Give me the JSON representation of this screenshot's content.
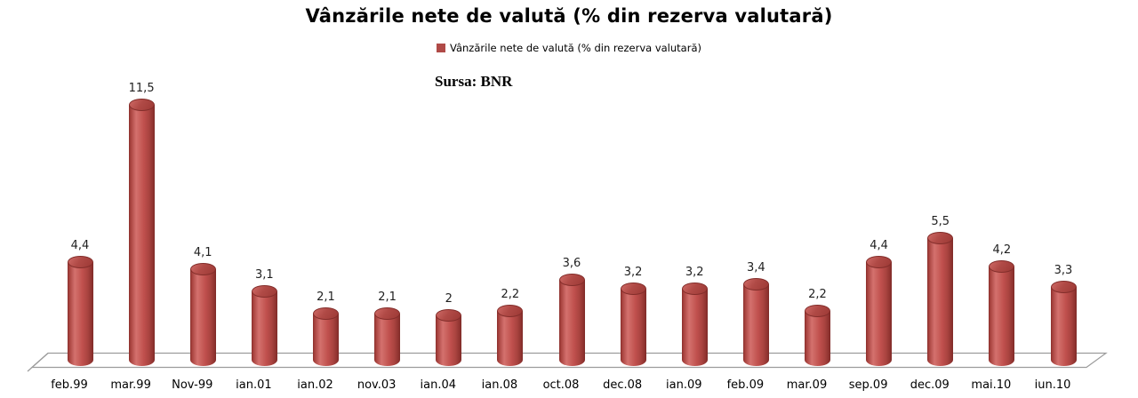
{
  "chart_data": {
    "type": "bar",
    "subtype": "3d-cylinder",
    "title": "Vânzările nete de valută (% din rezerva valutară)",
    "legend": [
      {
        "label": "Vânzările nete de valută (% din rezerva valutară)",
        "color": "#b04a47"
      }
    ],
    "source_note": "Sursa: BNR",
    "categories": [
      "feb.99",
      "mar.99",
      "Nov-99",
      "ian.01",
      "ian.02",
      "nov.03",
      "ian.04",
      "ian.08",
      "oct.08",
      "dec.08",
      "ian.09",
      "feb.09",
      "mar.09",
      "sep.09",
      "dec.09",
      "mai.10",
      "iun.10"
    ],
    "values": [
      4.4,
      11.5,
      4.1,
      3.1,
      2.1,
      2.1,
      2,
      2.2,
      3.6,
      3.2,
      3.2,
      3.4,
      2.2,
      4.4,
      5.5,
      4.2,
      3.3
    ],
    "value_labels": [
      "4,4",
      "11,5",
      "4,1",
      "3,1",
      "2,1",
      "2,1",
      "2",
      "2,2",
      "3,6",
      "3,2",
      "3,2",
      "3,4",
      "2,2",
      "4,4",
      "5,5",
      "4,2",
      "3,3"
    ],
    "bar_color": "#c0504d",
    "floor_line_color": "#9c9c9c",
    "xlabel": "",
    "ylabel": "",
    "ylim": [
      0,
      12
    ],
    "grid": false,
    "legend_position": "top-center",
    "data_labels": "above-bars"
  }
}
